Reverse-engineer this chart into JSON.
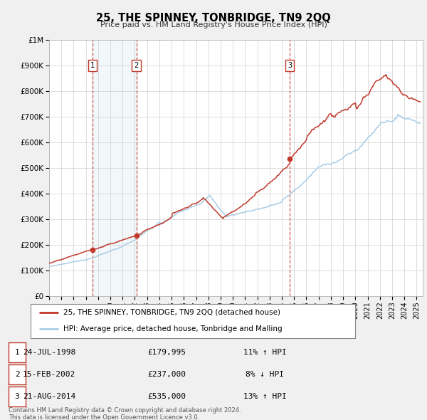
{
  "title": "25, THE SPINNEY, TONBRIDGE, TN9 2QQ",
  "subtitle": "Price paid vs. HM Land Registry's House Price Index (HPI)",
  "hpi_color": "#a8cce4",
  "price_color": "#c0392b",
  "background_color": "#f0f0f0",
  "plot_bg_color": "#ffffff",
  "grid_color": "#d0d0d0",
  "purchases": [
    {
      "num": 1,
      "date_label": "24-JUL-1998",
      "price": 179995,
      "pct": "11%",
      "direction": "↑",
      "x_year": 1998.55
    },
    {
      "num": 2,
      "date_label": "15-FEB-2002",
      "price": 237000,
      "pct": "8%",
      "direction": "↓",
      "x_year": 2002.12
    },
    {
      "num": 3,
      "date_label": "21-AUG-2014",
      "price": 535000,
      "pct": "13%",
      "direction": "↑",
      "x_year": 2014.64
    }
  ],
  "legend_entries": [
    "25, THE SPINNEY, TONBRIDGE, TN9 2QQ (detached house)",
    "HPI: Average price, detached house, Tonbridge and Malling"
  ],
  "footer_lines": [
    "Contains HM Land Registry data © Crown copyright and database right 2024.",
    "This data is licensed under the Open Government Licence v3.0."
  ],
  "ylim": [
    0,
    1000000
  ],
  "xlim": [
    1995.0,
    2025.5
  ],
  "yticks": [
    0,
    100000,
    200000,
    300000,
    400000,
    500000,
    600000,
    700000,
    800000,
    900000,
    1000000
  ],
  "ytick_labels": [
    "£0",
    "£100K",
    "£200K",
    "£300K",
    "£400K",
    "£500K",
    "£600K",
    "£700K",
    "£800K",
    "£900K",
    "£1M"
  ],
  "xticks": [
    1995,
    1996,
    1997,
    1998,
    1999,
    2000,
    2001,
    2002,
    2003,
    2004,
    2005,
    2006,
    2007,
    2008,
    2009,
    2010,
    2011,
    2012,
    2013,
    2014,
    2015,
    2016,
    2017,
    2018,
    2019,
    2020,
    2021,
    2022,
    2023,
    2024,
    2025
  ]
}
